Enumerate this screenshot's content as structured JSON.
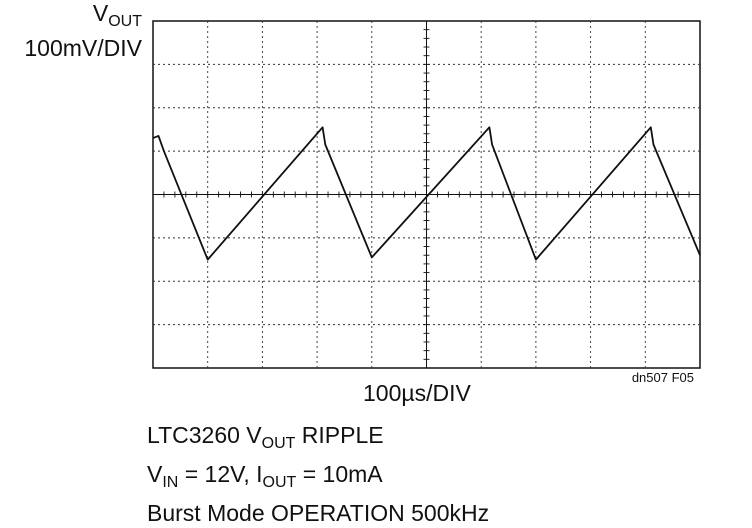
{
  "chart_data": {
    "type": "line",
    "y_label_symbol": "V",
    "y_label_subscript": "OUT",
    "y_label_scale": "100mV/DIV",
    "x_label": "100µs/DIV",
    "figure_id": "dn507 F05",
    "grid": true,
    "x_divisions": 10,
    "y_divisions": 8,
    "xlim": [
      0,
      10
    ],
    "ylim": [
      -4,
      4
    ],
    "x_unit": "div",
    "y_unit": "div",
    "series": [
      {
        "values_x": [
          0,
          0.1,
          0.2,
          1.0,
          3.1,
          3.15,
          4.0,
          6.15,
          6.2,
          7.0,
          9.1,
          9.15,
          10.0
        ],
        "values_y": [
          1.3,
          1.35,
          1.0,
          -1.5,
          1.55,
          1.15,
          -1.45,
          1.55,
          1.15,
          -1.5,
          1.55,
          1.15,
          -1.4
        ]
      }
    ]
  },
  "caption": {
    "line1_pre": "LTC3260 V",
    "line1_sub": "OUT",
    "line1_post": " RIPPLE",
    "line2_a": "V",
    "line2_a_sub": "IN",
    "line2_b": " = 12V, I",
    "line2_b_sub": "OUT",
    "line2_c": " = 10mA",
    "line3": "Burst Mode OPERATION 500kHz"
  }
}
